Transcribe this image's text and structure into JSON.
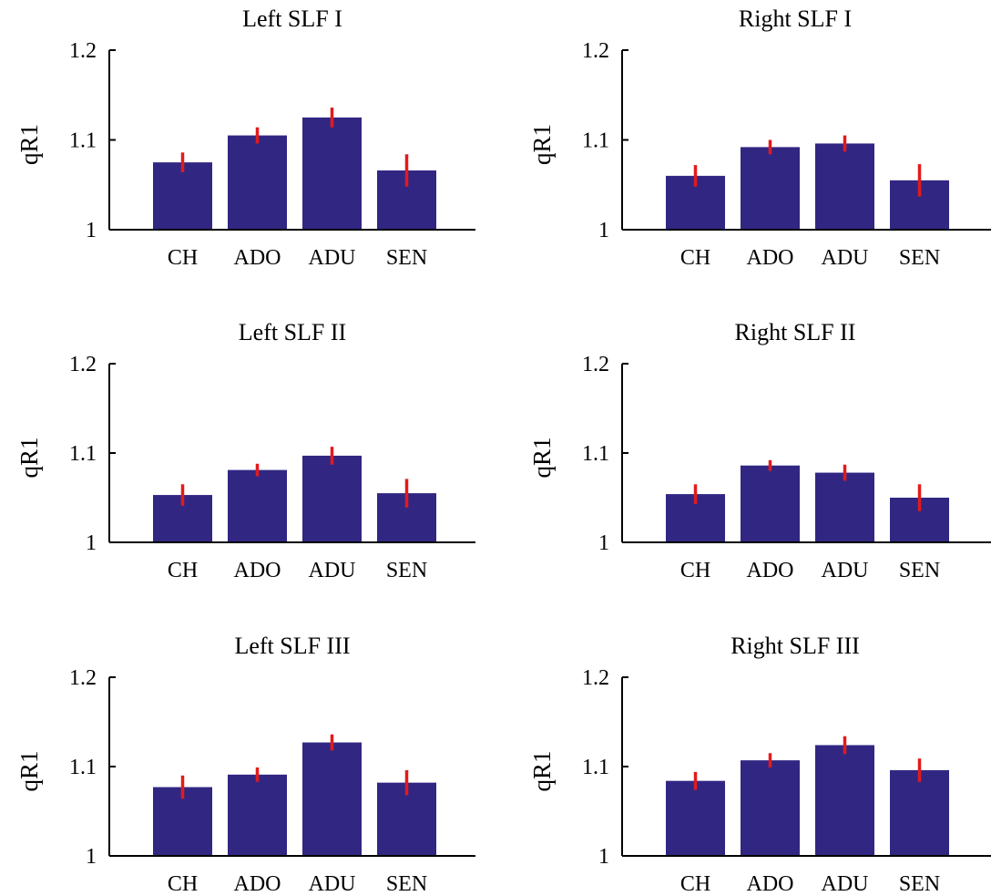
{
  "colors": {
    "bar": "#312783",
    "error_bar": "#e31a1c",
    "axis": "#000000"
  },
  "chart_data": [
    {
      "type": "bar",
      "title": "Left SLF I",
      "ylabel": "qR1",
      "ylim": [
        1,
        1.2
      ],
      "yticks": [
        1,
        1.1,
        1.2
      ],
      "ytick_labels": [
        "1",
        "1.1",
        "1.2"
      ],
      "categories": [
        "CH",
        "ADO",
        "ADU",
        "SEN"
      ],
      "values": [
        1.075,
        1.105,
        1.125,
        1.066
      ],
      "errors": [
        0.011,
        0.009,
        0.011,
        0.018
      ],
      "grid": false
    },
    {
      "type": "bar",
      "title": "Right SLF I",
      "ylabel": "qR1",
      "ylim": [
        1,
        1.2
      ],
      "yticks": [
        1,
        1.1,
        1.2
      ],
      "ytick_labels": [
        "1",
        "1.1",
        "1.2"
      ],
      "categories": [
        "CH",
        "ADO",
        "ADU",
        "SEN"
      ],
      "values": [
        1.06,
        1.092,
        1.096,
        1.055
      ],
      "errors": [
        0.012,
        0.008,
        0.009,
        0.018
      ],
      "grid": false
    },
    {
      "type": "bar",
      "title": "Left SLF II",
      "ylabel": "qR1",
      "ylim": [
        1,
        1.2
      ],
      "yticks": [
        1,
        1.1,
        1.2
      ],
      "ytick_labels": [
        "1",
        "1.1",
        "1.2"
      ],
      "categories": [
        "CH",
        "ADO",
        "ADU",
        "SEN"
      ],
      "values": [
        1.053,
        1.081,
        1.097,
        1.055
      ],
      "errors": [
        0.012,
        0.007,
        0.01,
        0.016
      ],
      "grid": false
    },
    {
      "type": "bar",
      "title": "Right SLF II",
      "ylabel": "qR1",
      "ylim": [
        1,
        1.2
      ],
      "yticks": [
        1,
        1.1,
        1.2
      ],
      "ytick_labels": [
        "1",
        "1.1",
        "1.2"
      ],
      "categories": [
        "CH",
        "ADO",
        "ADU",
        "SEN"
      ],
      "values": [
        1.054,
        1.086,
        1.078,
        1.05
      ],
      "errors": [
        0.011,
        0.006,
        0.009,
        0.015
      ],
      "grid": false
    },
    {
      "type": "bar",
      "title": "Left SLF III",
      "ylabel": "qR1",
      "ylim": [
        1,
        1.2
      ],
      "yticks": [
        1,
        1.1,
        1.2
      ],
      "ytick_labels": [
        "1",
        "1.1",
        "1.2"
      ],
      "categories": [
        "CH",
        "ADO",
        "ADU",
        "SEN"
      ],
      "values": [
        1.077,
        1.091,
        1.127,
        1.082
      ],
      "errors": [
        0.013,
        0.008,
        0.009,
        0.014
      ],
      "grid": false
    },
    {
      "type": "bar",
      "title": "Right SLF III",
      "ylabel": "qR1",
      "ylim": [
        1,
        1.2
      ],
      "yticks": [
        1,
        1.1,
        1.2
      ],
      "ytick_labels": [
        "1",
        "1.1",
        "1.2"
      ],
      "categories": [
        "CH",
        "ADO",
        "ADU",
        "SEN"
      ],
      "values": [
        1.084,
        1.107,
        1.124,
        1.096
      ],
      "errors": [
        0.01,
        0.008,
        0.01,
        0.013
      ],
      "grid": false
    }
  ]
}
